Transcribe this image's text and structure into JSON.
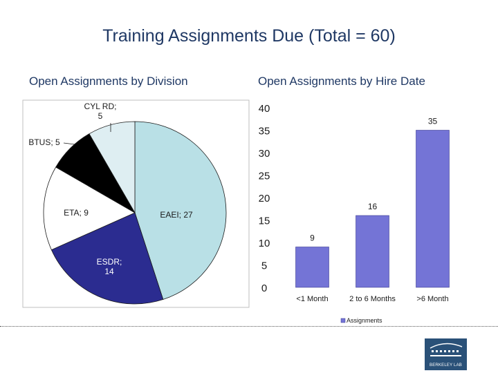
{
  "title": "Training Assignments Due (Total = 60)",
  "chart_data": [
    {
      "type": "pie",
      "title": "Open Assignments by Division",
      "slices": [
        {
          "label": "EAEI",
          "value": 27,
          "display": "EAEI; 27",
          "color": "#b9e0e6"
        },
        {
          "label": "ESDR",
          "value": 14,
          "display": "ESDR; 14",
          "color": "#2b2c90"
        },
        {
          "label": "ETA",
          "value": 9,
          "display": "ETA; 9",
          "color": "#ffffff"
        },
        {
          "label": "BTUS",
          "value": 5,
          "display": "BTUS; 5",
          "color": "#000000"
        },
        {
          "label": "CYL RD",
          "value": 5,
          "display": "CYL RD; 5",
          "color": "#deeef2"
        }
      ]
    },
    {
      "type": "bar",
      "title": "Open Assignments by Hire Date",
      "categories": [
        "<1 Month",
        "2 to 6 Months",
        ">6 Month"
      ],
      "series": [
        {
          "name": "Assignments",
          "values": [
            9,
            16,
            35
          ],
          "color": "#7474d6"
        }
      ],
      "ylim": [
        0,
        40
      ],
      "yticks": [
        "0",
        "5",
        "10",
        "15",
        "20",
        "25",
        "30",
        "35",
        "40"
      ],
      "legend": "bottom"
    }
  ],
  "logo": {
    "text": "BERKELEY LAB"
  }
}
